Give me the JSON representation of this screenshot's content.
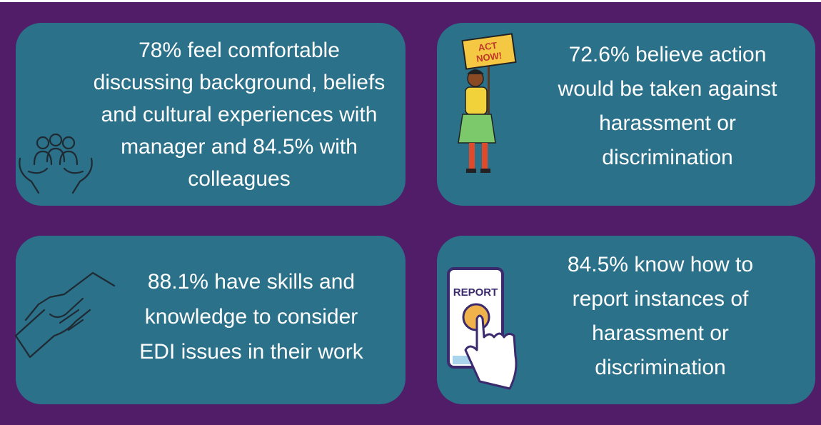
{
  "cards": [
    {
      "lines": [
        "78% feel comfortable",
        "discussing background, beliefs",
        "and cultural experiences with",
        "manager and 84.5% with",
        "colleagues"
      ]
    },
    {
      "lines": [
        "72.6% believe action",
        "would be taken against",
        "harassment or",
        "discrimination"
      ],
      "icon_label": [
        "ACT",
        "NOW!"
      ]
    },
    {
      "lines": [
        "88.1% have skills and",
        "knowledge to consider",
        "EDI issues in their work"
      ]
    },
    {
      "lines": [
        "84.5% know how to",
        "report instances of",
        "harassment or",
        "discrimination"
      ],
      "icon_label": [
        "REPORT"
      ]
    }
  ]
}
